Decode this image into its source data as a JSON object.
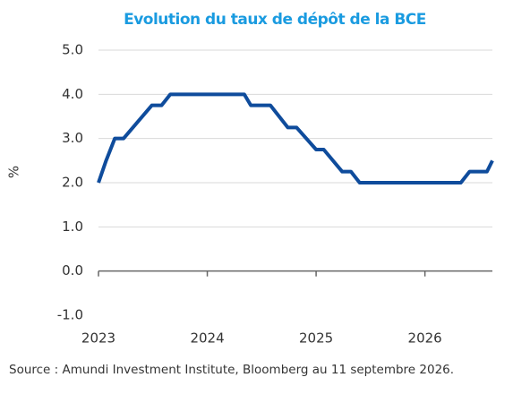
{
  "chart_data": {
    "type": "line",
    "title": "Evolution du taux de dépôt de la BCE",
    "y_label": "%",
    "source": "Source : Amundi Investment Institute, Bloomberg au 11 septembre 2026.",
    "x": [
      2023.0,
      2023.07,
      2023.15,
      2023.23,
      2023.49,
      2023.58,
      2023.66,
      2024.34,
      2024.4,
      2024.58,
      2024.74,
      2024.82,
      2025.0,
      2025.07,
      2025.24,
      2025.32,
      2025.4,
      2026.33,
      2026.41,
      2026.57,
      2026.62
    ],
    "series": [
      {
        "name": "Taux de dépôt",
        "color": "#0f4c9c",
        "values": [
          2.0,
          2.5,
          3.0,
          3.0,
          3.75,
          3.75,
          4.0,
          4.0,
          3.75,
          3.75,
          3.25,
          3.25,
          2.75,
          2.75,
          2.25,
          2.25,
          2.0,
          2.0,
          2.25,
          2.25,
          2.5
        ]
      }
    ],
    "xlim": [
      2023,
      2026.62
    ],
    "xticks": [
      2023,
      2024,
      2025,
      2026
    ],
    "ylim": [
      -1,
      5
    ],
    "yticks": [
      {
        "value": -1,
        "label": "-1.0"
      },
      {
        "value": 0,
        "label": "0.0"
      },
      {
        "value": 1,
        "label": "1.0"
      },
      {
        "value": 2,
        "label": "2.0"
      },
      {
        "value": 3,
        "label": "3.0"
      },
      {
        "value": 4,
        "label": "4.0"
      },
      {
        "value": 5,
        "label": "5.0"
      }
    ],
    "grid": true
  }
}
